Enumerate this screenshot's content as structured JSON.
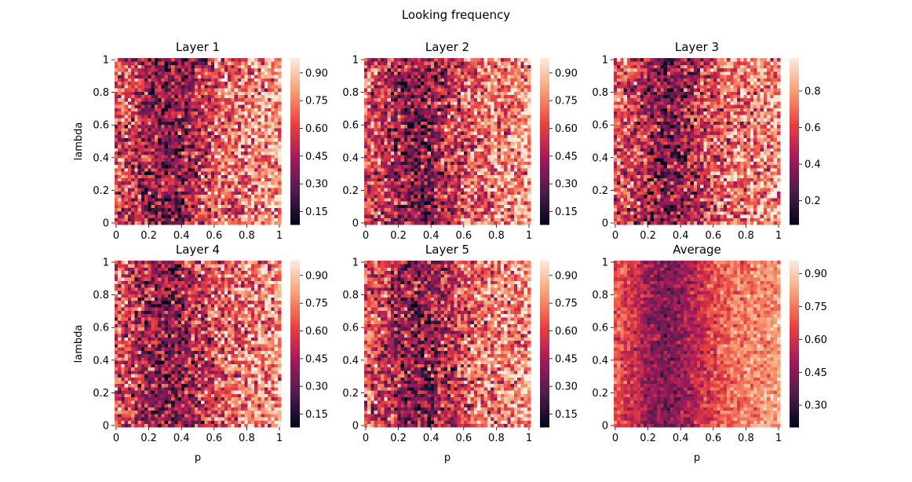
{
  "title": "Looking frequency",
  "chart_data": {
    "type": "heatmap",
    "suptitle": "Looking frequency",
    "grid_size": 50,
    "x": {
      "label": "p",
      "range": [
        0,
        1
      ],
      "ticks": [
        "0",
        "0.2",
        "0.4",
        "0.6",
        "0.8",
        "1"
      ]
    },
    "y": {
      "label": "lambda",
      "range": [
        0,
        1
      ],
      "ticks": [
        "0",
        "0.2",
        "0.4",
        "0.6",
        "0.8",
        "1"
      ]
    },
    "colormap": "rocket",
    "colormap_stops": [
      "#03051a",
      "#4c1d4b",
      "#a11a5b",
      "#e83f3f",
      "#f69c73",
      "#faebdd"
    ],
    "panels": [
      {
        "title": "Layer 1",
        "min": 0.08,
        "max": 0.98,
        "noise": 0.34,
        "colorbar_ticks": [
          "0.15",
          "0.30",
          "0.45",
          "0.60",
          "0.75",
          "0.90"
        ],
        "show_ylabel": true,
        "show_xlabel": false
      },
      {
        "title": "Layer 2",
        "min": 0.08,
        "max": 0.98,
        "noise": 0.34,
        "colorbar_ticks": [
          "0.15",
          "0.30",
          "0.45",
          "0.60",
          "0.75",
          "0.90"
        ],
        "show_ylabel": false,
        "show_xlabel": false
      },
      {
        "title": "Layer 3",
        "min": 0.07,
        "max": 0.98,
        "noise": 0.34,
        "colorbar_ticks": [
          "0.2",
          "0.4",
          "0.6",
          "0.8"
        ],
        "show_ylabel": false,
        "show_xlabel": false
      },
      {
        "title": "Layer 4",
        "min": 0.08,
        "max": 0.98,
        "noise": 0.34,
        "colorbar_ticks": [
          "0.15",
          "0.30",
          "0.45",
          "0.60",
          "0.75",
          "0.90"
        ],
        "show_ylabel": true,
        "show_xlabel": true
      },
      {
        "title": "Layer 5",
        "min": 0.08,
        "max": 0.98,
        "noise": 0.34,
        "colorbar_ticks": [
          "0.15",
          "0.30",
          "0.45",
          "0.60",
          "0.75",
          "0.90"
        ],
        "show_ylabel": false,
        "show_xlabel": true
      },
      {
        "title": "Average",
        "min": 0.2,
        "max": 0.96,
        "noise": 0.15,
        "colorbar_ticks": [
          "0.30",
          "0.45",
          "0.60",
          "0.75",
          "0.90"
        ],
        "show_ylabel": false,
        "show_xlabel": true
      }
    ]
  }
}
